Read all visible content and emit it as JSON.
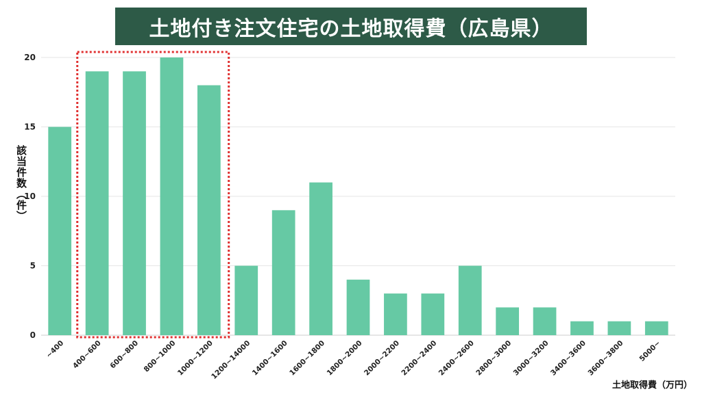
{
  "title": "土地付き注文住宅の土地取得費（広島県）",
  "chart_data": {
    "type": "bar",
    "categories": [
      "~400",
      "400~600",
      "600~800",
      "800~1000",
      "1000~1200",
      "1200~14000",
      "1400~1600",
      "1600~1800",
      "1800~2000",
      "2000~2200",
      "2200~2400",
      "2400~2600",
      "2800~3000",
      "3000~3200",
      "3400~3600",
      "3600~3800",
      "5000~"
    ],
    "values": [
      15,
      19,
      19,
      20,
      18,
      5,
      9,
      11,
      4,
      3,
      3,
      5,
      2,
      2,
      1,
      1,
      1
    ],
    "xlabel": "土地取得費（万円）",
    "ylabel": "該当件数（件）",
    "ylim": [
      0,
      20
    ],
    "yticks": [
      0,
      5,
      10,
      15,
      20
    ],
    "grid": true,
    "highlight_categories": [
      "400~600",
      "600~800",
      "800~1000",
      "1000~1200"
    ],
    "colors": {
      "bar": "#66c9a4",
      "highlight_border": "#e03030",
      "title_bg": "#2d5a47"
    }
  }
}
